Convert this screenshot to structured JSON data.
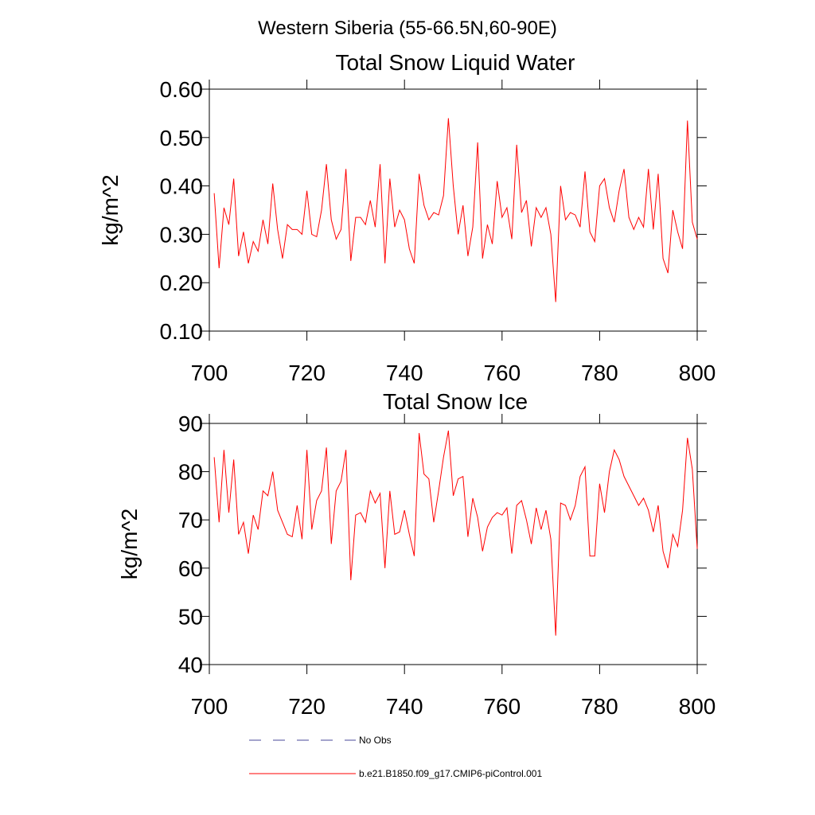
{
  "page_title": "Western Siberia (55-66.5N,60-90E)",
  "chart_data": [
    {
      "type": "line",
      "title": "Total Snow Liquid Water",
      "y_label": "kg/m^2",
      "color": "#ff0000",
      "x": [
        701,
        702,
        703,
        704,
        705,
        706,
        707,
        708,
        709,
        710,
        711,
        712,
        713,
        714,
        715,
        716,
        717,
        718,
        719,
        720,
        721,
        722,
        723,
        724,
        725,
        726,
        727,
        728,
        729,
        730,
        731,
        732,
        733,
        734,
        735,
        736,
        737,
        738,
        739,
        740,
        741,
        742,
        743,
        744,
        745,
        746,
        747,
        748,
        749,
        750,
        751,
        752,
        753,
        754,
        755,
        756,
        757,
        758,
        759,
        760,
        761,
        762,
        763,
        764,
        765,
        766,
        767,
        768,
        769,
        770,
        771,
        772,
        773,
        774,
        775,
        776,
        777,
        778,
        779,
        780,
        781,
        782,
        783,
        784,
        785,
        786,
        787,
        788,
        789,
        790,
        791,
        792,
        793,
        794,
        795,
        796,
        797,
        798,
        799,
        800
      ],
      "values": [
        0.385,
        0.23,
        0.355,
        0.32,
        0.415,
        0.255,
        0.305,
        0.24,
        0.285,
        0.265,
        0.33,
        0.28,
        0.405,
        0.31,
        0.25,
        0.32,
        0.31,
        0.31,
        0.3,
        0.39,
        0.3,
        0.295,
        0.35,
        0.445,
        0.33,
        0.29,
        0.31,
        0.435,
        0.245,
        0.335,
        0.335,
        0.32,
        0.37,
        0.315,
        0.445,
        0.24,
        0.415,
        0.315,
        0.35,
        0.33,
        0.27,
        0.24,
        0.425,
        0.36,
        0.33,
        0.345,
        0.34,
        0.38,
        0.54,
        0.4,
        0.3,
        0.36,
        0.255,
        0.315,
        0.49,
        0.25,
        0.32,
        0.28,
        0.41,
        0.335,
        0.355,
        0.29,
        0.485,
        0.345,
        0.37,
        0.275,
        0.355,
        0.335,
        0.355,
        0.3,
        0.16,
        0.4,
        0.33,
        0.345,
        0.34,
        0.315,
        0.43,
        0.305,
        0.285,
        0.4,
        0.415,
        0.355,
        0.325,
        0.39,
        0.435,
        0.335,
        0.31,
        0.335,
        0.315,
        0.435,
        0.31,
        0.425,
        0.25,
        0.22,
        0.35,
        0.305,
        0.27,
        0.535,
        0.325,
        0.29
      ],
      "xlim": [
        700,
        800
      ],
      "xticks": [
        700,
        720,
        740,
        760,
        780,
        800
      ],
      "ylim": [
        0.1,
        0.6
      ],
      "yticks": [
        {
          "value": 0.1,
          "label": "0.10"
        },
        {
          "value": 0.2,
          "label": "0.20"
        },
        {
          "value": 0.3,
          "label": "0.30"
        },
        {
          "value": 0.4,
          "label": "0.40"
        },
        {
          "value": 0.5,
          "label": "0.50"
        },
        {
          "value": 0.6,
          "label": "0.60"
        }
      ]
    },
    {
      "type": "line",
      "title": "Total Snow Ice",
      "y_label": "kg/m^2",
      "color": "#ff0000",
      "x": [
        701,
        702,
        703,
        704,
        705,
        706,
        707,
        708,
        709,
        710,
        711,
        712,
        713,
        714,
        715,
        716,
        717,
        718,
        719,
        720,
        721,
        722,
        723,
        724,
        725,
        726,
        727,
        728,
        729,
        730,
        731,
        732,
        733,
        734,
        735,
        736,
        737,
        738,
        739,
        740,
        741,
        742,
        743,
        744,
        745,
        746,
        747,
        748,
        749,
        750,
        751,
        752,
        753,
        754,
        755,
        756,
        757,
        758,
        759,
        760,
        761,
        762,
        763,
        764,
        765,
        766,
        767,
        768,
        769,
        770,
        771,
        772,
        773,
        774,
        775,
        776,
        777,
        778,
        779,
        780,
        781,
        782,
        783,
        784,
        785,
        786,
        787,
        788,
        789,
        790,
        791,
        792,
        793,
        794,
        795,
        796,
        797,
        798,
        799,
        800
      ],
      "values": [
        83,
        69.5,
        84.5,
        71.5,
        82.5,
        67,
        69.5,
        63,
        71,
        68,
        76,
        75,
        80,
        72,
        69.5,
        67,
        66.5,
        73,
        66,
        84.5,
        68,
        74,
        76,
        85,
        65,
        76,
        78,
        84.5,
        57.5,
        71,
        71.5,
        69.5,
        76,
        73.5,
        75.5,
        60,
        76,
        67,
        67.5,
        72,
        67,
        62.5,
        88,
        79.5,
        78.5,
        69.5,
        76,
        83,
        88.5,
        75,
        78.5,
        79,
        66.5,
        74.5,
        70.5,
        63.5,
        68.5,
        70.5,
        71.5,
        71,
        72.5,
        63,
        73,
        74,
        70,
        65,
        72.5,
        68,
        72,
        66,
        46,
        73.5,
        73,
        70,
        73,
        79,
        81,
        62.5,
        62.5,
        77.5,
        71.5,
        80,
        84.5,
        82.5,
        79,
        77,
        75,
        73,
        74.5,
        72,
        67.5,
        73,
        63.5,
        60,
        67,
        64.5,
        72,
        87,
        80.5,
        64
      ],
      "xlim": [
        700,
        800
      ],
      "xticks": [
        700,
        720,
        740,
        760,
        780,
        800
      ],
      "ylim": [
        40,
        90
      ],
      "yticks": [
        40,
        50,
        60,
        70,
        80,
        90
      ]
    }
  ],
  "legend": [
    {
      "name": "No Obs",
      "color": "#4a4a9a",
      "dash": true
    },
    {
      "name": "b.e21.B1850.f09_g17.CMIP6-piControl.001",
      "color": "#ff0000",
      "dash": false
    }
  ]
}
